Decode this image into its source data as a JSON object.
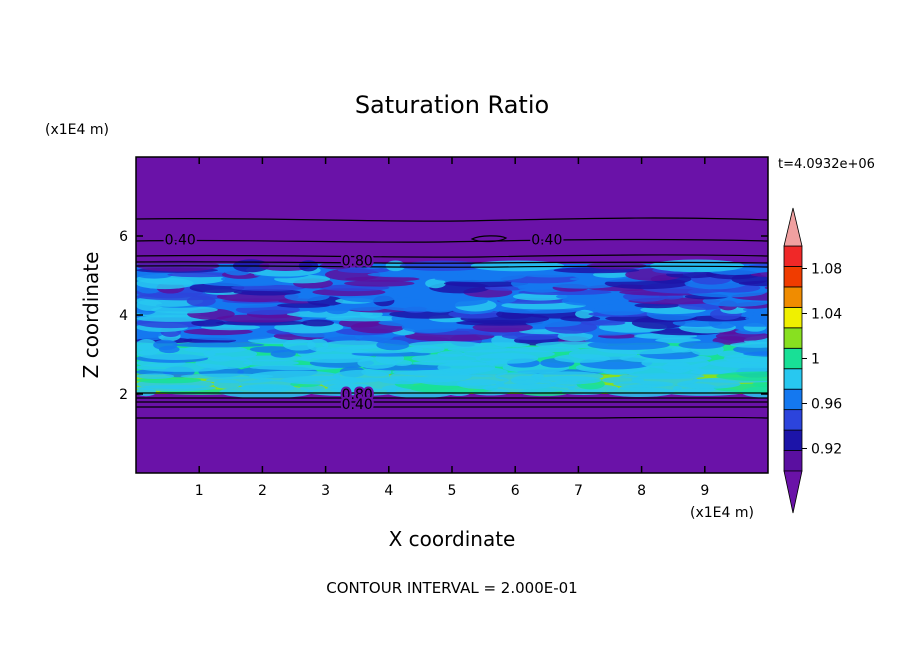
{
  "chart_data": {
    "type": "heatmap",
    "title": "Saturation Ratio",
    "xlabel": "X coordinate",
    "ylabel": "Z coordinate",
    "x_unit": "(x1E4 m)",
    "y_unit": "(x1E4 m)",
    "time_label": "t=4.0932e+06",
    "footer": "CONTOUR INTERVAL = 2.000E-01",
    "xlim": [
      0,
      10
    ],
    "ylim": [
      0,
      8
    ],
    "x_ticks": [
      "1",
      "2",
      "3",
      "4",
      "5",
      "6",
      "7",
      "8",
      "9"
    ],
    "y_ticks": [
      "2",
      "4",
      "6"
    ],
    "colorbar": {
      "bounds": [
        0.9,
        0.92,
        0.94,
        0.96,
        0.98,
        1.0,
        1.02,
        1.04,
        1.06,
        1.08,
        1.1
      ],
      "colors": [
        "#5a0fa0",
        "#1c14a8",
        "#2c44dc",
        "#1478f0",
        "#28c8f0",
        "#18e096",
        "#88e020",
        "#f0f000",
        "#f08c00",
        "#f03c00",
        "#f02828"
      ],
      "under_color": "#6a12a8",
      "over_color": "#f0a0a0",
      "tick_labels": [
        "0.92",
        "0.96",
        "1",
        "1.04",
        "1.08"
      ],
      "tick_values": [
        0.92,
        0.96,
        1.0,
        1.04,
        1.08
      ]
    },
    "bands": [
      {
        "z": [
          0,
          2.0
        ],
        "value": "below 0.90",
        "color": "#6a12a8"
      },
      {
        "z": [
          2.0,
          2.5
        ],
        "value": "0.98-1.02",
        "color": "#88e020"
      },
      {
        "z": [
          2.5,
          3.3
        ],
        "value": "0.96-1.00",
        "color": "#18e096"
      },
      {
        "z": [
          3.3,
          5.3
        ],
        "value": "0.90-0.98",
        "color": "#1478f0"
      },
      {
        "z": [
          5.3,
          8.0
        ],
        "value": "below 0.90",
        "color": "#6a12a8"
      }
    ],
    "contour_labels": [
      {
        "text": "0.40",
        "x": 0.7,
        "z": 5.88
      },
      {
        "text": "0.40",
        "x": 6.5,
        "z": 5.88
      },
      {
        "text": "0.80",
        "x": 3.5,
        "z": 5.35
      },
      {
        "text": "0.80",
        "x": 3.5,
        "z": 1.97
      },
      {
        "text": "0.40",
        "x": 3.5,
        "z": 1.72
      }
    ]
  }
}
